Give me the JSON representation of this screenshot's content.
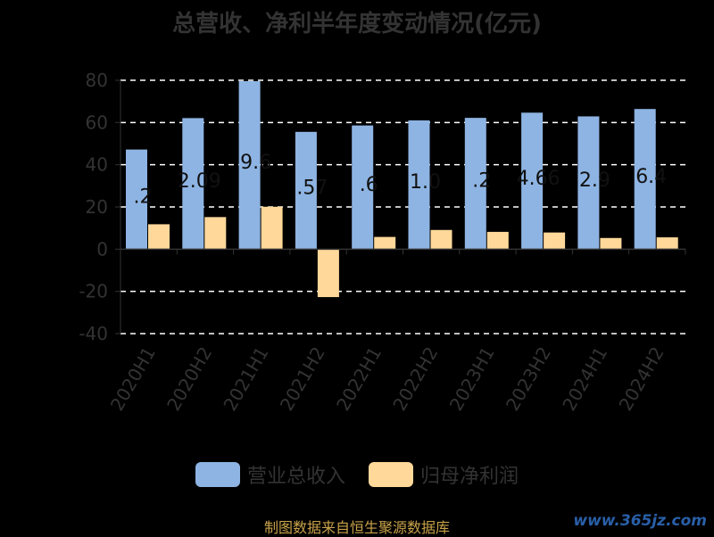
{
  "chart_data": {
    "type": "bar",
    "title": "总营收、净利半年度变动情况(亿元)",
    "categories": [
      "2020H1",
      "2020H2",
      "2021H1",
      "2021H2",
      "2022H1",
      "2022H2",
      "2023H1",
      "2023H2",
      "2024H1",
      "2024H2"
    ],
    "series": [
      {
        "name": "营业总收入",
        "color": "#8EB4E3",
        "values": [
          47.2,
          62.09,
          79.6,
          55.57,
          58.6,
          61.0,
          62.2,
          64.66,
          62.9,
          66.4
        ]
      },
      {
        "name": "归母净利润",
        "color": "#FFD89A",
        "values": [
          11.8,
          15.2,
          20.1,
          -22.7,
          5.8,
          9.1,
          8.2,
          7.9,
          5.3,
          5.6
        ]
      }
    ],
    "data_labels": [
      ".2",
      "2.09",
      "9.6",
      ".57",
      ".6",
      "1.0",
      ".2",
      "4.66",
      "2.9",
      "6.4"
    ],
    "ylim": [
      -40,
      80
    ],
    "yticks": [
      -40,
      -20,
      0,
      20,
      40,
      60,
      80
    ],
    "grid": true,
    "legend_position": "bottom"
  },
  "footer": {
    "source": "制图数据来自恒生聚源数据库",
    "watermark": "www.365jz.com"
  }
}
